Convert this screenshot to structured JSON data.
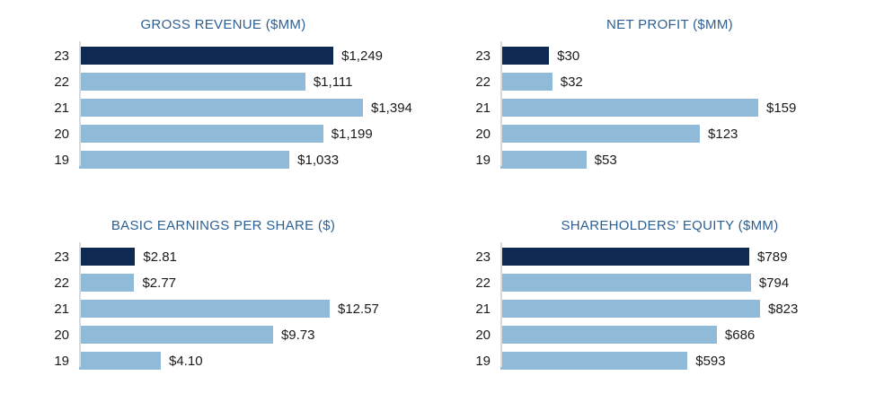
{
  "page": {
    "background": "#ffffff"
  },
  "colors": {
    "highlight_navy": "#0e2a52",
    "bar_light_blue": "#8fbad8",
    "title_blue": "#2d5f92",
    "axis_gray": "#d9d9d9",
    "text_black": "#1a1a1a"
  },
  "chart_data": [
    {
      "type": "bar",
      "orientation": "horizontal",
      "title": "GROSS REVENUE ($MM)",
      "categories": [
        "23",
        "22",
        "21",
        "20",
        "19"
      ],
      "values": [
        1249,
        1111,
        1394,
        1199,
        1033
      ],
      "value_labels": [
        "$1,249",
        "$1,111",
        "$1,394",
        "$1,199",
        "$1,033"
      ],
      "xlim": [
        0,
        1394
      ],
      "highlight_index": 0,
      "highlight_color": "#0e2a52",
      "bar_color": "#8fbad8",
      "grid": false,
      "legend": false
    },
    {
      "type": "bar",
      "orientation": "horizontal",
      "title": "NET PROFIT ($MM)",
      "categories": [
        "23",
        "22",
        "21",
        "20",
        "19"
      ],
      "values": [
        30,
        32,
        159,
        123,
        53
      ],
      "value_labels": [
        "$30",
        "$32",
        "$159",
        "$123",
        "$53"
      ],
      "xlim": [
        0,
        159
      ],
      "highlight_index": 0,
      "highlight_color": "#0e2a52",
      "bar_color": "#8fbad8",
      "grid": false,
      "legend": false
    },
    {
      "type": "bar",
      "orientation": "horizontal",
      "title": "BASIC EARNINGS PER SHARE ($)",
      "categories": [
        "23",
        "22",
        "21",
        "20",
        "19"
      ],
      "values": [
        2.81,
        2.77,
        12.57,
        9.73,
        4.1
      ],
      "value_labels": [
        "$2.81",
        "$2.77",
        "$12.57",
        "$9.73",
        "$4.10"
      ],
      "xlim": [
        0,
        12.57
      ],
      "highlight_index": 0,
      "highlight_color": "#0e2a52",
      "bar_color": "#8fbad8",
      "grid": false,
      "legend": false
    },
    {
      "type": "bar",
      "orientation": "horizontal",
      "title": "SHAREHOLDERS’ EQUITY ($MM)",
      "categories": [
        "23",
        "22",
        "21",
        "20",
        "19"
      ],
      "values": [
        789,
        794,
        823,
        686,
        593
      ],
      "value_labels": [
        "$789",
        "$794",
        "$823",
        "$686",
        "$593"
      ],
      "xlim": [
        0,
        823
      ],
      "highlight_index": 0,
      "highlight_color": "#0e2a52",
      "bar_color": "#8fbad8",
      "grid": false,
      "legend": false
    }
  ]
}
